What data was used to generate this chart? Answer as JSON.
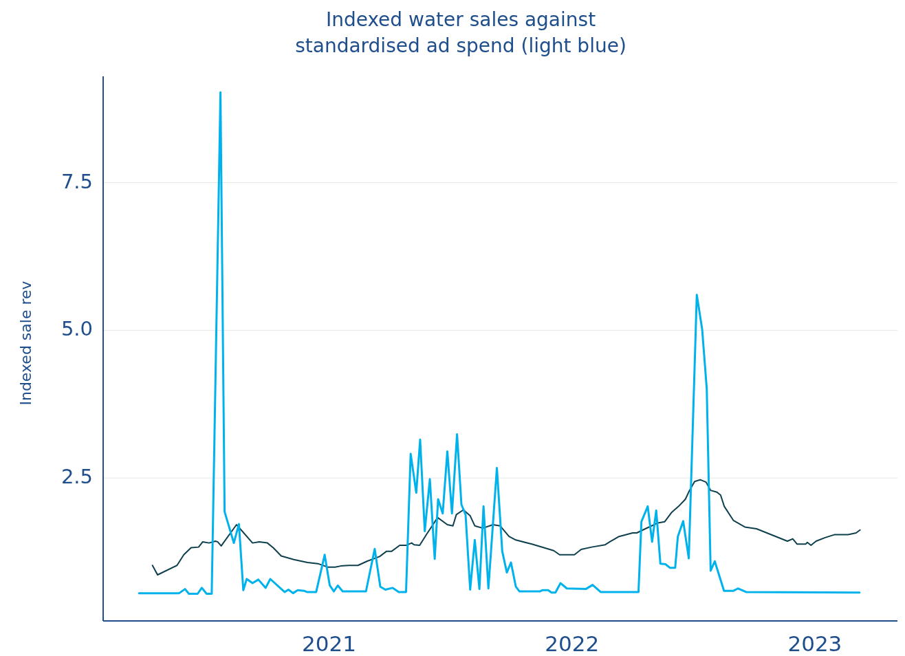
{
  "chart_data": {
    "type": "line",
    "title": "Indexed water sales against\nstandardised ad spend (light blue)",
    "ylabel": "Indexed sale rev",
    "xlim": [
      2020.07,
      2023.34
    ],
    "xticks": [
      2021,
      2022,
      2023
    ],
    "ylim": [
      0.08,
      9.3
    ],
    "yticks": [
      2.5,
      {
        "value": 5,
        "label": "5.0"
      },
      7.5
    ],
    "grid": "y",
    "series": [
      {
        "color": "#0e3f4d",
        "x": [
          2020.273,
          2020.294,
          2020.374,
          2020.402,
          2020.432,
          2020.463,
          2020.48,
          2020.506,
          2020.532,
          2020.541,
          2020.556,
          2020.619,
          2020.685,
          2020.713,
          2020.746,
          2020.77,
          2020.803,
          2020.855,
          2020.911,
          2020.954,
          2020.996,
          2021.025,
          2021.048,
          2021.081,
          2021.119,
          2021.156,
          2021.208,
          2021.237,
          2021.258,
          2021.291,
          2021.317,
          2021.34,
          2021.35,
          2021.373,
          2021.402,
          2021.447,
          2021.487,
          2021.51,
          2021.524,
          2021.553,
          2021.581,
          2021.6,
          2021.633,
          2021.675,
          2021.704,
          2021.741,
          2021.769,
          2021.835,
          2021.925,
          2021.949,
          2022.01,
          2022.038,
          2022.081,
          2022.137,
          2022.156,
          2022.194,
          2022.25,
          2022.267,
          2022.302,
          2022.354,
          2022.382,
          2022.411,
          2022.439,
          2022.467,
          2022.484,
          2022.505,
          2022.528,
          2022.552,
          2022.571,
          2022.597,
          2022.612,
          2022.627,
          2022.665,
          2022.712,
          2022.76,
          2022.887,
          2022.909,
          2022.927,
          2022.962,
          2022.969,
          2022.984,
          2023.005,
          2023.042,
          2023.08,
          2023.137,
          2023.17,
          2023.186
        ],
        "values": [
          1.02,
          0.86,
          1.02,
          1.2,
          1.32,
          1.33,
          1.42,
          1.4,
          1.43,
          1.42,
          1.35,
          1.71,
          1.4,
          1.42,
          1.4,
          1.32,
          1.18,
          1.12,
          1.07,
          1.05,
          0.99,
          0.99,
          1.01,
          1.02,
          1.02,
          1.09,
          1.17,
          1.26,
          1.26,
          1.36,
          1.36,
          1.4,
          1.37,
          1.36,
          1.55,
          1.83,
          1.71,
          1.69,
          1.88,
          1.96,
          1.86,
          1.69,
          1.65,
          1.71,
          1.69,
          1.51,
          1.45,
          1.38,
          1.27,
          1.2,
          1.2,
          1.29,
          1.33,
          1.37,
          1.42,
          1.51,
          1.57,
          1.57,
          1.64,
          1.74,
          1.76,
          1.92,
          2.02,
          2.14,
          2.29,
          2.44,
          2.47,
          2.43,
          2.29,
          2.26,
          2.21,
          2.02,
          1.78,
          1.67,
          1.64,
          1.43,
          1.47,
          1.38,
          1.38,
          1.41,
          1.36,
          1.43,
          1.49,
          1.54,
          1.54,
          1.57,
          1.62
        ]
      },
      {
        "color": "#00b2ec",
        "x": [
          2020.218,
          2020.383,
          2020.407,
          2020.423,
          2020.459,
          2020.476,
          2020.496,
          2020.517,
          2020.553,
          2020.57,
          2020.608,
          2020.629,
          2020.647,
          2020.661,
          2020.685,
          2020.709,
          2020.739,
          2020.758,
          2020.817,
          2020.833,
          2020.852,
          2020.871,
          2020.897,
          2020.909,
          2020.947,
          2020.982,
          2021.003,
          2021.02,
          2021.036,
          2021.056,
          2021.152,
          2021.188,
          2021.211,
          2021.232,
          2021.262,
          2021.287,
          2021.317,
          2021.336,
          2021.359,
          2021.375,
          2021.394,
          2021.415,
          2021.435,
          2021.449,
          2021.468,
          2021.487,
          2021.506,
          2021.527,
          2021.545,
          2021.562,
          2021.581,
          2021.6,
          2021.619,
          2021.636,
          2021.656,
          2021.691,
          2021.713,
          2021.732,
          2021.749,
          2021.769,
          2021.784,
          2021.868,
          2021.878,
          2021.902,
          2021.916,
          2021.932,
          2021.953,
          2021.979,
          2022.057,
          2022.085,
          2022.118,
          2022.274,
          2022.286,
          2022.312,
          2022.33,
          2022.347,
          2022.364,
          2022.385,
          2022.403,
          2022.425,
          2022.436,
          2022.458,
          2022.481,
          2022.514,
          2022.536,
          2022.555,
          2022.571,
          2022.588,
          2022.626,
          2022.665,
          2022.684,
          2022.717,
          2023.184
        ],
        "values": [
          0.55,
          0.55,
          0.62,
          0.54,
          0.54,
          0.64,
          0.54,
          0.54,
          9.03,
          1.93,
          1.4,
          1.72,
          0.6,
          0.79,
          0.72,
          0.78,
          0.64,
          0.79,
          0.57,
          0.61,
          0.55,
          0.6,
          0.59,
          0.57,
          0.57,
          1.2,
          0.68,
          0.58,
          0.68,
          0.58,
          0.58,
          1.3,
          0.66,
          0.61,
          0.64,
          0.57,
          0.57,
          2.91,
          2.25,
          3.15,
          1.6,
          2.48,
          1.13,
          2.14,
          1.9,
          2.95,
          1.9,
          3.24,
          2.05,
          1.88,
          0.61,
          1.45,
          0.62,
          2.02,
          0.63,
          2.67,
          1.26,
          0.9,
          1.07,
          0.66,
          0.58,
          0.58,
          0.6,
          0.6,
          0.56,
          0.56,
          0.72,
          0.63,
          0.62,
          0.69,
          0.57,
          0.57,
          1.76,
          2.02,
          1.42,
          1.95,
          1.05,
          1.04,
          0.98,
          0.98,
          1.51,
          1.77,
          1.14,
          5.6,
          5.02,
          4.01,
          0.93,
          1.09,
          0.59,
          0.59,
          0.63,
          0.57,
          0.56
        ]
      }
    ]
  }
}
